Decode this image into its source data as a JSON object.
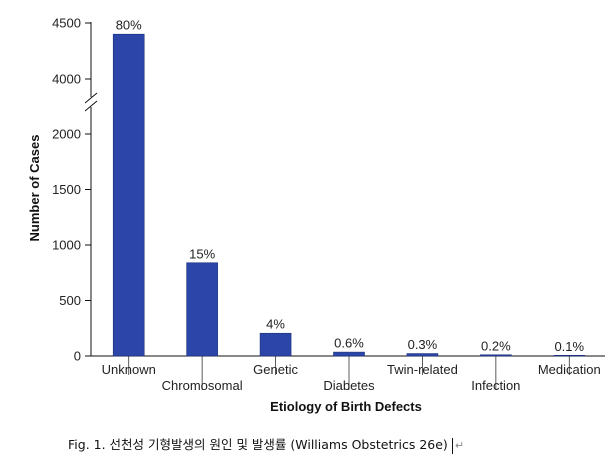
{
  "chart_data": {
    "type": "bar",
    "categories": [
      "Unknown",
      "Chromosomal",
      "Genetic",
      "Diabetes",
      "Twin-related",
      "Infection",
      "Medication"
    ],
    "values": [
      4400,
      840,
      205,
      35,
      22,
      11,
      6
    ],
    "data_labels": [
      "80%",
      "15%",
      "4%",
      "0.6%",
      "0.3%",
      "0.2%",
      "0.1%"
    ],
    "xlabel": "Etiology of Birth Defects",
    "ylabel": "Number of Cases",
    "y_ticks_lower": [
      0,
      500,
      1000,
      1500,
      2000
    ],
    "y_ticks_upper": [
      4000,
      4500
    ],
    "y_axis_break": [
      2200,
      3900
    ],
    "ylim": [
      0,
      4500
    ],
    "bar_color": "#2b46a8",
    "grid": false
  },
  "caption": {
    "text": "Fig. 1. 선천성 기형발생의 원인 및 발생률  (Williams Obstetrics 26e)",
    "return_mark": "↵"
  }
}
